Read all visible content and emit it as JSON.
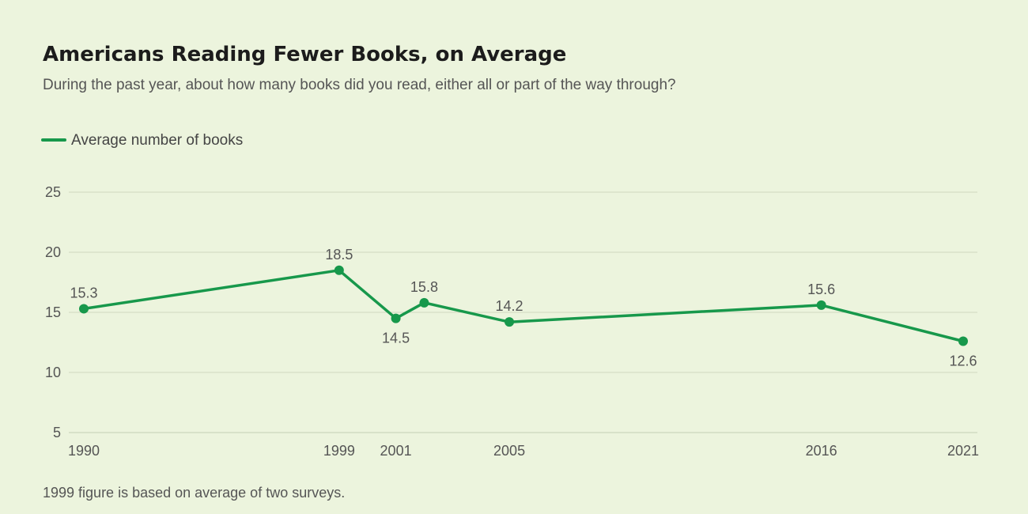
{
  "chart_data": {
    "type": "line",
    "title": "Americans Reading Fewer Books, on Average",
    "subtitle": "During the past year, about how many books did you read, either all or part of the way through?",
    "note": "1999 figure is based on average of two surveys.",
    "xlabel": "",
    "ylabel": "",
    "ylim": [
      5,
      25
    ],
    "yticks": [
      5,
      10,
      15,
      20,
      25
    ],
    "xlim": [
      1990,
      2021
    ],
    "xticks": [
      1990,
      1999,
      2001,
      2005,
      2016,
      2021
    ],
    "grid": true,
    "legend_position": "top-left",
    "series": [
      {
        "name": "Average number of books",
        "color": "#17984b",
        "points": [
          {
            "x": 1990,
            "y": 15.3,
            "label": "15.3",
            "label_pos": "above"
          },
          {
            "x": 1999,
            "y": 18.5,
            "label": "18.5",
            "label_pos": "above"
          },
          {
            "x": 2001,
            "y": 14.5,
            "label": "14.5",
            "label_pos": "below"
          },
          {
            "x": 2002,
            "y": 15.8,
            "label": "15.8",
            "label_pos": "above"
          },
          {
            "x": 2005,
            "y": 14.2,
            "label": "14.2",
            "label_pos": "above"
          },
          {
            "x": 2016,
            "y": 15.6,
            "label": "15.6",
            "label_pos": "above"
          },
          {
            "x": 2021,
            "y": 12.6,
            "label": "12.6",
            "label_pos": "below"
          }
        ]
      }
    ]
  }
}
